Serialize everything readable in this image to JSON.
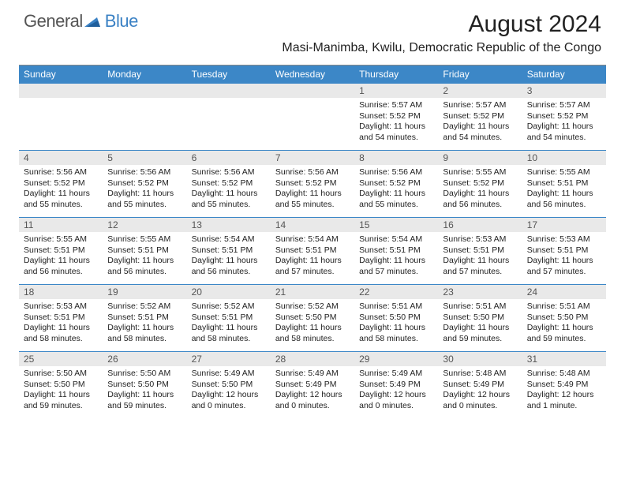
{
  "logo": {
    "text1": "General",
    "text2": "Blue"
  },
  "title": "August 2024",
  "subtitle": "Masi-Manimba, Kwilu, Democratic Republic of the Congo",
  "colors": {
    "header_bg": "#3c87c7",
    "daynum_bg": "#e9e9e9",
    "border": "#3c87c7",
    "logo_blue": "#3a81c4"
  },
  "weekdays": [
    "Sunday",
    "Monday",
    "Tuesday",
    "Wednesday",
    "Thursday",
    "Friday",
    "Saturday"
  ],
  "weeks": [
    {
      "nums": [
        "",
        "",
        "",
        "",
        "1",
        "2",
        "3"
      ],
      "cells": [
        {
          "sunrise": "",
          "sunset": "",
          "daylight": ""
        },
        {
          "sunrise": "",
          "sunset": "",
          "daylight": ""
        },
        {
          "sunrise": "",
          "sunset": "",
          "daylight": ""
        },
        {
          "sunrise": "",
          "sunset": "",
          "daylight": ""
        },
        {
          "sunrise": "Sunrise: 5:57 AM",
          "sunset": "Sunset: 5:52 PM",
          "daylight": "Daylight: 11 hours and 54 minutes."
        },
        {
          "sunrise": "Sunrise: 5:57 AM",
          "sunset": "Sunset: 5:52 PM",
          "daylight": "Daylight: 11 hours and 54 minutes."
        },
        {
          "sunrise": "Sunrise: 5:57 AM",
          "sunset": "Sunset: 5:52 PM",
          "daylight": "Daylight: 11 hours and 54 minutes."
        }
      ]
    },
    {
      "nums": [
        "4",
        "5",
        "6",
        "7",
        "8",
        "9",
        "10"
      ],
      "cells": [
        {
          "sunrise": "Sunrise: 5:56 AM",
          "sunset": "Sunset: 5:52 PM",
          "daylight": "Daylight: 11 hours and 55 minutes."
        },
        {
          "sunrise": "Sunrise: 5:56 AM",
          "sunset": "Sunset: 5:52 PM",
          "daylight": "Daylight: 11 hours and 55 minutes."
        },
        {
          "sunrise": "Sunrise: 5:56 AM",
          "sunset": "Sunset: 5:52 PM",
          "daylight": "Daylight: 11 hours and 55 minutes."
        },
        {
          "sunrise": "Sunrise: 5:56 AM",
          "sunset": "Sunset: 5:52 PM",
          "daylight": "Daylight: 11 hours and 55 minutes."
        },
        {
          "sunrise": "Sunrise: 5:56 AM",
          "sunset": "Sunset: 5:52 PM",
          "daylight": "Daylight: 11 hours and 55 minutes."
        },
        {
          "sunrise": "Sunrise: 5:55 AM",
          "sunset": "Sunset: 5:52 PM",
          "daylight": "Daylight: 11 hours and 56 minutes."
        },
        {
          "sunrise": "Sunrise: 5:55 AM",
          "sunset": "Sunset: 5:51 PM",
          "daylight": "Daylight: 11 hours and 56 minutes."
        }
      ]
    },
    {
      "nums": [
        "11",
        "12",
        "13",
        "14",
        "15",
        "16",
        "17"
      ],
      "cells": [
        {
          "sunrise": "Sunrise: 5:55 AM",
          "sunset": "Sunset: 5:51 PM",
          "daylight": "Daylight: 11 hours and 56 minutes."
        },
        {
          "sunrise": "Sunrise: 5:55 AM",
          "sunset": "Sunset: 5:51 PM",
          "daylight": "Daylight: 11 hours and 56 minutes."
        },
        {
          "sunrise": "Sunrise: 5:54 AM",
          "sunset": "Sunset: 5:51 PM",
          "daylight": "Daylight: 11 hours and 56 minutes."
        },
        {
          "sunrise": "Sunrise: 5:54 AM",
          "sunset": "Sunset: 5:51 PM",
          "daylight": "Daylight: 11 hours and 57 minutes."
        },
        {
          "sunrise": "Sunrise: 5:54 AM",
          "sunset": "Sunset: 5:51 PM",
          "daylight": "Daylight: 11 hours and 57 minutes."
        },
        {
          "sunrise": "Sunrise: 5:53 AM",
          "sunset": "Sunset: 5:51 PM",
          "daylight": "Daylight: 11 hours and 57 minutes."
        },
        {
          "sunrise": "Sunrise: 5:53 AM",
          "sunset": "Sunset: 5:51 PM",
          "daylight": "Daylight: 11 hours and 57 minutes."
        }
      ]
    },
    {
      "nums": [
        "18",
        "19",
        "20",
        "21",
        "22",
        "23",
        "24"
      ],
      "cells": [
        {
          "sunrise": "Sunrise: 5:53 AM",
          "sunset": "Sunset: 5:51 PM",
          "daylight": "Daylight: 11 hours and 58 minutes."
        },
        {
          "sunrise": "Sunrise: 5:52 AM",
          "sunset": "Sunset: 5:51 PM",
          "daylight": "Daylight: 11 hours and 58 minutes."
        },
        {
          "sunrise": "Sunrise: 5:52 AM",
          "sunset": "Sunset: 5:51 PM",
          "daylight": "Daylight: 11 hours and 58 minutes."
        },
        {
          "sunrise": "Sunrise: 5:52 AM",
          "sunset": "Sunset: 5:50 PM",
          "daylight": "Daylight: 11 hours and 58 minutes."
        },
        {
          "sunrise": "Sunrise: 5:51 AM",
          "sunset": "Sunset: 5:50 PM",
          "daylight": "Daylight: 11 hours and 58 minutes."
        },
        {
          "sunrise": "Sunrise: 5:51 AM",
          "sunset": "Sunset: 5:50 PM",
          "daylight": "Daylight: 11 hours and 59 minutes."
        },
        {
          "sunrise": "Sunrise: 5:51 AM",
          "sunset": "Sunset: 5:50 PM",
          "daylight": "Daylight: 11 hours and 59 minutes."
        }
      ]
    },
    {
      "nums": [
        "25",
        "26",
        "27",
        "28",
        "29",
        "30",
        "31"
      ],
      "cells": [
        {
          "sunrise": "Sunrise: 5:50 AM",
          "sunset": "Sunset: 5:50 PM",
          "daylight": "Daylight: 11 hours and 59 minutes."
        },
        {
          "sunrise": "Sunrise: 5:50 AM",
          "sunset": "Sunset: 5:50 PM",
          "daylight": "Daylight: 11 hours and 59 minutes."
        },
        {
          "sunrise": "Sunrise: 5:49 AM",
          "sunset": "Sunset: 5:50 PM",
          "daylight": "Daylight: 12 hours and 0 minutes."
        },
        {
          "sunrise": "Sunrise: 5:49 AM",
          "sunset": "Sunset: 5:49 PM",
          "daylight": "Daylight: 12 hours and 0 minutes."
        },
        {
          "sunrise": "Sunrise: 5:49 AM",
          "sunset": "Sunset: 5:49 PM",
          "daylight": "Daylight: 12 hours and 0 minutes."
        },
        {
          "sunrise": "Sunrise: 5:48 AM",
          "sunset": "Sunset: 5:49 PM",
          "daylight": "Daylight: 12 hours and 0 minutes."
        },
        {
          "sunrise": "Sunrise: 5:48 AM",
          "sunset": "Sunset: 5:49 PM",
          "daylight": "Daylight: 12 hours and 1 minute."
        }
      ]
    }
  ]
}
